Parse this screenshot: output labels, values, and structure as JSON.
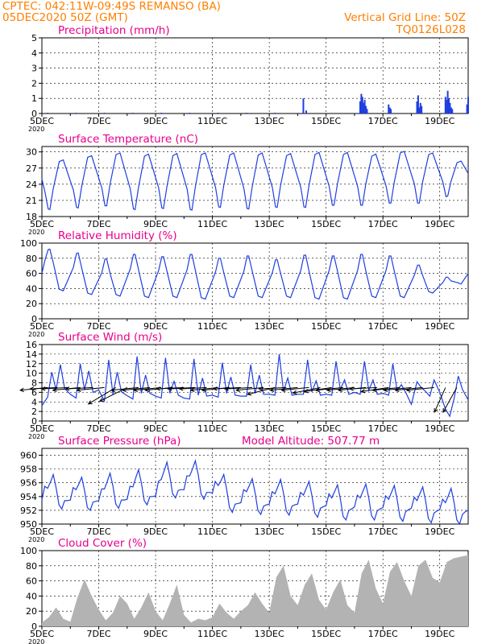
{
  "header": {
    "line1": "CPTEC:   042:11W-09:49S   REMANSO (BA)",
    "line2": "05DEC2020 50Z (GMT)",
    "grid_note": "Vertical Grid Line: 50Z",
    "model_code": "TQ0126L028",
    "model_altitude": "Model Altitude: 507.77 m"
  },
  "colors": {
    "header": "#ff7f00",
    "titles": "#e8008c",
    "series": "#1f3fe0",
    "cloud_fill": "#b3b3b3",
    "wind_arrow": "#000000"
  },
  "x_axis": {
    "tick_labels": [
      "5DEC",
      "7DEC",
      "9DEC",
      "11DEC",
      "13DEC",
      "15DEC",
      "17DEC",
      "19DEC"
    ],
    "tick_days": [
      0,
      2,
      4,
      6,
      8,
      10,
      12,
      14
    ],
    "range_days": [
      0,
      15
    ],
    "year_mark": "2020"
  },
  "chart_data": [
    {
      "id": "precip",
      "type": "bar",
      "title": "Precipitation (mm/h)",
      "ylim": [
        0,
        5
      ],
      "yticks": [
        0,
        1,
        2,
        3,
        4,
        5
      ],
      "grid": true,
      "x_days": [
        0.2,
        1.2,
        2.2,
        3.2,
        4.2,
        5.2,
        6.2,
        7.2,
        8.2,
        9.2,
        9.3,
        11.2,
        11.24,
        11.28,
        11.32,
        11.36,
        11.4,
        11.44,
        12.2,
        12.24,
        12.28,
        13.2,
        13.24,
        13.28,
        13.32,
        13.36,
        14.2,
        14.24,
        14.28,
        14.32,
        14.36,
        14.4,
        14.44,
        14.96,
        15.0
      ],
      "values": [
        0.05,
        0.05,
        0.05,
        0.05,
        0.05,
        0.05,
        0.05,
        0.05,
        0.05,
        1.0,
        0.2,
        0.8,
        1.3,
        1.1,
        0.7,
        0.9,
        0.5,
        0.3,
        0.6,
        0.4,
        0.3,
        0.8,
        1.2,
        0.4,
        0.7,
        0.5,
        1.1,
        0.9,
        1.5,
        1.0,
        0.7,
        0.4,
        0.3,
        0.6,
        1.1
      ]
    },
    {
      "id": "temp",
      "type": "line",
      "title": "Surface Temperature (nC)",
      "ylim": [
        18,
        31
      ],
      "yticks": [
        18,
        21,
        24,
        27,
        30
      ],
      "grid": true,
      "x_days": [
        0.0,
        0.11,
        0.22,
        0.28,
        0.4,
        0.61,
        0.75,
        1.11,
        1.22,
        1.28,
        1.4,
        1.61,
        1.75,
        2.11,
        2.22,
        2.28,
        2.4,
        2.61,
        2.75,
        3.11,
        3.22,
        3.28,
        3.4,
        3.61,
        3.75,
        4.11,
        4.22,
        4.28,
        4.4,
        4.61,
        4.75,
        5.11,
        5.22,
        5.28,
        5.4,
        5.61,
        5.75,
        6.11,
        6.22,
        6.28,
        6.4,
        6.61,
        6.75,
        7.11,
        7.22,
        7.28,
        7.4,
        7.61,
        7.75,
        8.11,
        8.22,
        8.28,
        8.4,
        8.61,
        8.75,
        9.11,
        9.22,
        9.28,
        9.4,
        9.61,
        9.75,
        10.11,
        10.22,
        10.28,
        10.4,
        10.61,
        10.75,
        11.11,
        11.22,
        11.28,
        11.4,
        11.61,
        11.75,
        12.11,
        12.22,
        12.28,
        12.4,
        12.61,
        12.75,
        13.11,
        13.22,
        13.28,
        13.4,
        13.61,
        13.75,
        14.11,
        14.22,
        14.28,
        14.4,
        14.61,
        14.75,
        15.0
      ],
      "values": [
        25.0,
        22.5,
        19.4,
        19.3,
        23.2,
        28.2,
        28.5,
        22.9,
        19.7,
        19.6,
        23.6,
        29.0,
        29.3,
        23.3,
        20.0,
        20.0,
        24.0,
        29.5,
        29.8,
        23.1,
        19.4,
        19.3,
        23.4,
        29.2,
        29.6,
        23.3,
        19.6,
        19.5,
        23.6,
        29.3,
        29.7,
        23.1,
        19.3,
        19.2,
        23.5,
        29.5,
        29.8,
        23.4,
        19.8,
        19.7,
        23.8,
        29.4,
        29.8,
        23.2,
        19.5,
        19.4,
        23.5,
        29.4,
        29.8,
        23.4,
        19.8,
        19.7,
        23.8,
        29.3,
        29.7,
        23.4,
        19.8,
        19.7,
        23.8,
        29.5,
        29.9,
        23.6,
        20.1,
        20.1,
        24.1,
        29.5,
        29.9,
        23.6,
        20.1,
        20.1,
        24.1,
        29.2,
        29.6,
        23.7,
        20.5,
        20.5,
        24.4,
        29.8,
        30.1,
        24.0,
        20.5,
        20.5,
        24.5,
        29.5,
        29.8,
        24.4,
        21.7,
        21.8,
        24.6,
        28.0,
        28.3,
        26.0
      ]
    },
    {
      "id": "humidity",
      "type": "line",
      "title": "Relative Humidity (%)",
      "ylim": [
        0,
        100
      ],
      "yticks": [
        0,
        20,
        40,
        60,
        80,
        100
      ],
      "grid": true,
      "x_days": [
        0.0,
        0.11,
        0.22,
        0.28,
        0.4,
        0.61,
        0.75,
        1.11,
        1.22,
        1.28,
        1.4,
        1.61,
        1.75,
        2.11,
        2.22,
        2.28,
        2.4,
        2.61,
        2.75,
        3.11,
        3.22,
        3.28,
        3.4,
        3.61,
        3.75,
        4.11,
        4.22,
        4.28,
        4.4,
        4.61,
        4.75,
        5.11,
        5.22,
        5.28,
        5.4,
        5.61,
        5.75,
        6.11,
        6.22,
        6.28,
        6.4,
        6.61,
        6.75,
        7.11,
        7.22,
        7.28,
        7.4,
        7.61,
        7.75,
        8.11,
        8.22,
        8.28,
        8.4,
        8.61,
        8.75,
        9.11,
        9.22,
        9.28,
        9.4,
        9.61,
        9.75,
        10.11,
        10.22,
        10.28,
        10.4,
        10.61,
        10.75,
        11.11,
        11.22,
        11.28,
        11.4,
        11.61,
        11.75,
        12.11,
        12.22,
        12.28,
        12.4,
        12.61,
        12.75,
        13.11,
        13.22,
        13.28,
        13.4,
        13.61,
        13.75,
        14.11,
        14.22,
        14.28,
        14.4,
        14.61,
        14.75,
        15.0
      ],
      "values": [
        60.0,
        78.0,
        91.5,
        92.0,
        74.0,
        39.0,
        37.0,
        68.0,
        86.5,
        87.0,
        67.0,
        34.0,
        32.0,
        61.0,
        79.0,
        79.0,
        60.0,
        32.0,
        30.0,
        66.0,
        85.0,
        85.0,
        65.0,
        30.0,
        28.0,
        64.0,
        82.0,
        82.0,
        63.0,
        30.0,
        28.0,
        65.0,
        85.0,
        85.0,
        64.0,
        28.0,
        26.0,
        62.0,
        80.0,
        80.0,
        61.0,
        30.0,
        28.0,
        63.0,
        83.0,
        83.0,
        63.0,
        30.0,
        28.0,
        61.0,
        78.0,
        78.0,
        60.0,
        30.0,
        28.0,
        64.0,
        84.0,
        84.0,
        63.0,
        28.0,
        26.0,
        64.0,
        83.0,
        83.0,
        63.0,
        28.0,
        26.0,
        64.0,
        85.0,
        85.0,
        63.0,
        30.0,
        28.0,
        64.0,
        83.0,
        83.0,
        63.0,
        30.0,
        28.0,
        58.0,
        71.0,
        71.0,
        57.0,
        36.0,
        34.0,
        48.0,
        55.0,
        55.0,
        50.0,
        48.0,
        46.0,
        60.0
      ]
    },
    {
      "id": "wind",
      "type": "line",
      "title": "Surface Wind (m/s)",
      "ylim": [
        0,
        16
      ],
      "yticks": [
        0,
        2,
        4,
        6,
        8,
        10,
        12,
        14,
        16
      ],
      "grid": true,
      "x_days": [
        0.0,
        0.2,
        0.35,
        0.5,
        0.65,
        0.8,
        1.0,
        1.2,
        1.35,
        1.5,
        1.65,
        1.8,
        2.0,
        2.2,
        2.35,
        2.5,
        2.65,
        2.8,
        3.0,
        3.2,
        3.35,
        3.5,
        3.65,
        3.8,
        4.0,
        4.2,
        4.35,
        4.5,
        4.65,
        4.8,
        5.0,
        5.2,
        5.35,
        5.5,
        5.65,
        5.8,
        6.0,
        6.2,
        6.35,
        6.5,
        6.65,
        6.8,
        7.0,
        7.2,
        7.35,
        7.5,
        7.65,
        7.8,
        8.0,
        8.2,
        8.35,
        8.5,
        8.65,
        8.8,
        9.0,
        9.2,
        9.35,
        9.5,
        9.65,
        9.8,
        10.0,
        10.2,
        10.35,
        10.5,
        10.65,
        10.8,
        11.0,
        11.2,
        11.35,
        11.5,
        11.65,
        11.8,
        12.0,
        12.2,
        12.35,
        12.5,
        12.65,
        12.8,
        13.0,
        13.2,
        13.35,
        13.5,
        13.65,
        13.8,
        14.0,
        14.2,
        14.35,
        14.5,
        14.65,
        14.8,
        15.0
      ],
      "values": [
        3.2,
        5.0,
        10.2,
        6.5,
        11.8,
        6.8,
        5.6,
        4.8,
        12.0,
        6.5,
        10.5,
        6.0,
        6.5,
        4.2,
        12.8,
        5.6,
        10.2,
        6.1,
        5.3,
        4.6,
        13.5,
        5.8,
        9.6,
        5.8,
        5.2,
        4.8,
        13.2,
        5.8,
        8.3,
        5.4,
        4.8,
        4.6,
        13.0,
        5.4,
        9.0,
        5.2,
        5.4,
        5.0,
        12.2,
        5.8,
        9.2,
        5.4,
        5.2,
        5.2,
        11.8,
        5.8,
        9.6,
        5.6,
        5.6,
        5.4,
        14.0,
        6.2,
        9.0,
        5.4,
        5.6,
        5.6,
        12.8,
        6.1,
        8.4,
        5.4,
        5.6,
        5.4,
        12.5,
        6.6,
        8.6,
        5.6,
        6.0,
        5.6,
        12.5,
        6.4,
        8.6,
        5.6,
        5.8,
        5.4,
        12.0,
        6.4,
        7.6,
        6.0,
        3.5,
        8.2,
        7.0,
        6.2,
        5.2,
        8.6,
        6.0,
        2.5,
        1.0,
        4.6,
        9.4,
        6.6,
        4.4
      ],
      "arrows_x": [
        0.2,
        0.55,
        0.95,
        1.35,
        1.8,
        2.2,
        2.6,
        3.0,
        3.4,
        3.8,
        4.2,
        4.6,
        5.0,
        5.4,
        5.8,
        6.2,
        6.6,
        7.0,
        7.4,
        7.8,
        8.2,
        8.6,
        9.0,
        9.4,
        9.8,
        10.2,
        10.6,
        11.0,
        11.4,
        11.8,
        12.2,
        12.6,
        13.0,
        13.4,
        13.8,
        14.2,
        14.6
      ],
      "arrows_dx": [
        -1.0,
        -1.0,
        -1.0,
        -1.0,
        -1.0,
        -1.0,
        -1.0,
        -1.0,
        -1.0,
        -1.0,
        -1.0,
        -1.0,
        -1.0,
        -1.0,
        -1.0,
        -1.0,
        -1.0,
        -1.0,
        -1.0,
        -1.0,
        -1.0,
        -1.0,
        -1.0,
        -1.0,
        -1.0,
        -1.0,
        -1.0,
        -1.0,
        -1.0,
        -1.0,
        -1.0,
        -1.0,
        -1.0,
        -1.0,
        -1.0,
        -0.4,
        -0.5
      ],
      "arrows_dy": [
        -0.1,
        -0.05,
        -0.05,
        -0.1,
        -0.05,
        -0.1,
        -0.6,
        -0.5,
        -0.1,
        -0.1,
        -0.1,
        -0.1,
        -0.05,
        -0.05,
        -0.05,
        -0.1,
        -0.1,
        -0.05,
        -0.05,
        -0.1,
        -0.25,
        -0.05,
        -0.1,
        -0.1,
        -0.2,
        -0.15,
        -0.1,
        -0.1,
        -0.1,
        -0.05,
        -0.15,
        -0.1,
        -0.1,
        -0.1,
        -0.1,
        -0.9,
        -0.9
      ]
    },
    {
      "id": "pressure",
      "type": "line",
      "title": "Surface Pressure (hPa)",
      "ylim": [
        950,
        961
      ],
      "yticks": [
        950,
        952,
        954,
        956,
        958,
        960
      ],
      "grid": true,
      "x_days": [
        0.0,
        0.1,
        0.2,
        0.3,
        0.4,
        0.5,
        0.6,
        0.7,
        0.8,
        0.9,
        1.0,
        1.1,
        1.2,
        1.3,
        1.4,
        1.5,
        1.6,
        1.7,
        1.8,
        1.9,
        2.0,
        2.1,
        2.2,
        2.3,
        2.4,
        2.5,
        2.6,
        2.7,
        2.8,
        2.9,
        3.0,
        3.1,
        3.2,
        3.3,
        3.4,
        3.5,
        3.6,
        3.7,
        3.8,
        3.9,
        4.0,
        4.1,
        4.2,
        4.3,
        4.4,
        4.5,
        4.6,
        4.7,
        4.8,
        4.9,
        5.0,
        5.1,
        5.2,
        5.3,
        5.4,
        5.5,
        5.6,
        5.7,
        5.8,
        5.9,
        6.0,
        6.1,
        6.2,
        6.3,
        6.4,
        6.5,
        6.6,
        6.7,
        6.8,
        6.9,
        7.0,
        7.1,
        7.2,
        7.3,
        7.4,
        7.5,
        7.6,
        7.7,
        7.8,
        7.9,
        8.0,
        8.1,
        8.2,
        8.3,
        8.4,
        8.5,
        8.6,
        8.7,
        8.8,
        8.9,
        9.0,
        9.1,
        9.2,
        9.3,
        9.4,
        9.5,
        9.6,
        9.7,
        9.8,
        9.9,
        10.0,
        10.1,
        10.2,
        10.3,
        10.4,
        10.5,
        10.6,
        10.7,
        10.8,
        10.9,
        11.0,
        11.1,
        11.2,
        11.3,
        11.4,
        11.5,
        11.6,
        11.7,
        11.8,
        11.9,
        12.0,
        12.1,
        12.2,
        12.3,
        12.4,
        12.5,
        12.6,
        12.7,
        12.8,
        12.9,
        13.0,
        13.1,
        13.2,
        13.3,
        13.4,
        13.5,
        13.6,
        13.7,
        13.8,
        13.9,
        14.0,
        14.1,
        14.2,
        14.3,
        14.4,
        14.5,
        14.6,
        14.7,
        14.8,
        14.9,
        15.0
      ],
      "values": [
        953.5,
        955.5,
        955.2,
        956.1,
        957.2,
        955.3,
        952.8,
        952.2,
        953.4,
        953.4,
        953.5,
        955.3,
        955.0,
        955.8,
        956.8,
        954.9,
        952.4,
        952.0,
        953.2,
        953.3,
        953.4,
        955.1,
        955.1,
        956.2,
        957.4,
        955.5,
        952.9,
        952.3,
        953.5,
        953.5,
        953.6,
        955.5,
        955.4,
        956.7,
        957.9,
        956.0,
        953.4,
        952.8,
        954.0,
        954.0,
        954.1,
        956.2,
        956.5,
        957.7,
        959.0,
        957.0,
        954.4,
        953.8,
        954.9,
        955.0,
        955.0,
        957.0,
        957.0,
        958.0,
        959.2,
        957.2,
        954.4,
        953.6,
        954.6,
        954.6,
        954.5,
        956.2,
        955.6,
        956.3,
        957.2,
        955.1,
        952.4,
        951.7,
        952.9,
        953.0,
        953.1,
        955.0,
        954.7,
        955.6,
        956.6,
        954.6,
        952.0,
        951.4,
        952.6,
        952.8,
        952.9,
        954.7,
        954.4,
        955.4,
        956.5,
        954.5,
        951.9,
        951.3,
        952.6,
        952.8,
        952.9,
        954.6,
        954.2,
        955.2,
        956.2,
        954.2,
        951.6,
        951.0,
        952.3,
        952.5,
        952.7,
        954.4,
        953.8,
        954.7,
        955.7,
        953.7,
        951.1,
        950.6,
        952.0,
        952.2,
        952.5,
        954.2,
        953.8,
        954.8,
        955.8,
        953.8,
        951.2,
        950.6,
        951.9,
        952.2,
        952.4,
        954.1,
        953.6,
        954.6,
        955.6,
        953.6,
        951.0,
        950.4,
        951.8,
        952.1,
        952.3,
        953.9,
        953.4,
        954.4,
        955.4,
        953.4,
        950.8,
        950.2,
        951.6,
        951.9,
        952.1,
        953.6,
        953.1,
        954.1,
        955.2,
        953.2,
        950.6,
        950.0,
        951.4,
        951.8,
        952.0
      ]
    },
    {
      "id": "cloud",
      "type": "area",
      "title": "Cloud Cover (%)",
      "ylim": [
        0,
        100
      ],
      "yticks": [
        0,
        20,
        40,
        60,
        80,
        100
      ],
      "grid": true,
      "x_days": [
        0.0,
        0.25,
        0.5,
        0.75,
        1.0,
        1.25,
        1.5,
        1.75,
        2.0,
        2.25,
        2.5,
        2.75,
        3.0,
        3.25,
        3.5,
        3.75,
        4.0,
        4.25,
        4.5,
        4.75,
        5.0,
        5.25,
        5.5,
        5.75,
        6.0,
        6.25,
        6.5,
        6.75,
        7.0,
        7.25,
        7.5,
        7.75,
        8.0,
        8.25,
        8.5,
        8.75,
        9.0,
        9.25,
        9.5,
        9.75,
        10.0,
        10.25,
        10.5,
        10.75,
        11.0,
        11.25,
        11.5,
        11.75,
        12.0,
        12.25,
        12.5,
        12.75,
        13.0,
        13.25,
        13.5,
        13.75,
        14.0,
        14.25,
        14.5,
        14.75,
        15.0
      ],
      "values": [
        5,
        12,
        25,
        10,
        6,
        38,
        62,
        40,
        22,
        8,
        18,
        40,
        30,
        10,
        25,
        45,
        20,
        8,
        30,
        55,
        15,
        5,
        10,
        8,
        12,
        30,
        18,
        10,
        20,
        28,
        45,
        30,
        18,
        65,
        80,
        40,
        28,
        55,
        70,
        35,
        22,
        45,
        62,
        28,
        18,
        70,
        88,
        50,
        30,
        72,
        85,
        60,
        40,
        80,
        88,
        64,
        58,
        85,
        90,
        92,
        94
      ]
    }
  ]
}
